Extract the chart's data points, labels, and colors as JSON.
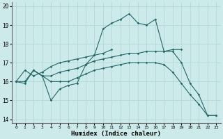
{
  "xlabel": "Humidex (Indice chaleur)",
  "background_color": "#cceaea",
  "grid_color": "#b0d8d8",
  "line_color": "#226666",
  "xlim": [
    -0.5,
    23.5
  ],
  "ylim": [
    13.8,
    20.2
  ],
  "yticks": [
    14,
    15,
    16,
    17,
    18,
    19,
    20
  ],
  "xticks": [
    0,
    1,
    2,
    3,
    4,
    5,
    6,
    7,
    8,
    9,
    10,
    11,
    12,
    13,
    14,
    15,
    16,
    17,
    18,
    19,
    20,
    21,
    22,
    23
  ],
  "lines": [
    {
      "x": [
        0,
        1,
        2,
        3,
        4,
        5,
        6,
        7,
        8,
        9,
        10,
        11,
        12,
        13,
        14,
        15,
        16,
        17,
        18,
        19,
        20,
        21,
        22,
        23
      ],
      "y": [
        16.0,
        15.9,
        16.6,
        16.3,
        15.0,
        15.6,
        15.8,
        15.9,
        16.9,
        17.4,
        18.8,
        19.1,
        19.3,
        19.6,
        19.1,
        19.0,
        19.3,
        17.6,
        17.6,
        17.0,
        15.9,
        15.3,
        14.2,
        14.2
      ]
    },
    {
      "x": [
        0,
        1,
        2,
        3,
        4,
        5,
        6,
        7,
        8,
        9,
        10,
        11,
        12,
        13,
        14,
        15,
        16,
        17,
        18,
        19
      ],
      "y": [
        16.0,
        16.0,
        16.6,
        16.3,
        16.3,
        16.5,
        16.6,
        16.7,
        16.9,
        17.1,
        17.2,
        17.3,
        17.4,
        17.5,
        17.5,
        17.6,
        17.6,
        17.6,
        17.7,
        17.7
      ]
    },
    {
      "x": [
        0,
        1,
        2,
        3,
        4,
        5,
        6,
        7,
        8,
        9,
        10,
        11
      ],
      "y": [
        16.0,
        16.6,
        16.3,
        16.5,
        16.8,
        17.0,
        17.1,
        17.2,
        17.3,
        17.4,
        17.5,
        17.7
      ]
    },
    {
      "x": [
        2,
        3,
        4,
        5,
        6,
        7,
        8,
        9,
        10,
        11,
        12,
        13,
        14,
        15,
        16,
        17,
        18,
        19,
        20,
        21,
        22,
        23
      ],
      "y": [
        16.6,
        16.3,
        16.0,
        16.0,
        16.0,
        16.2,
        16.4,
        16.6,
        16.7,
        16.8,
        16.9,
        17.0,
        17.0,
        17.0,
        17.0,
        16.9,
        16.5,
        15.9,
        15.3,
        14.8,
        14.2,
        14.2
      ]
    }
  ]
}
